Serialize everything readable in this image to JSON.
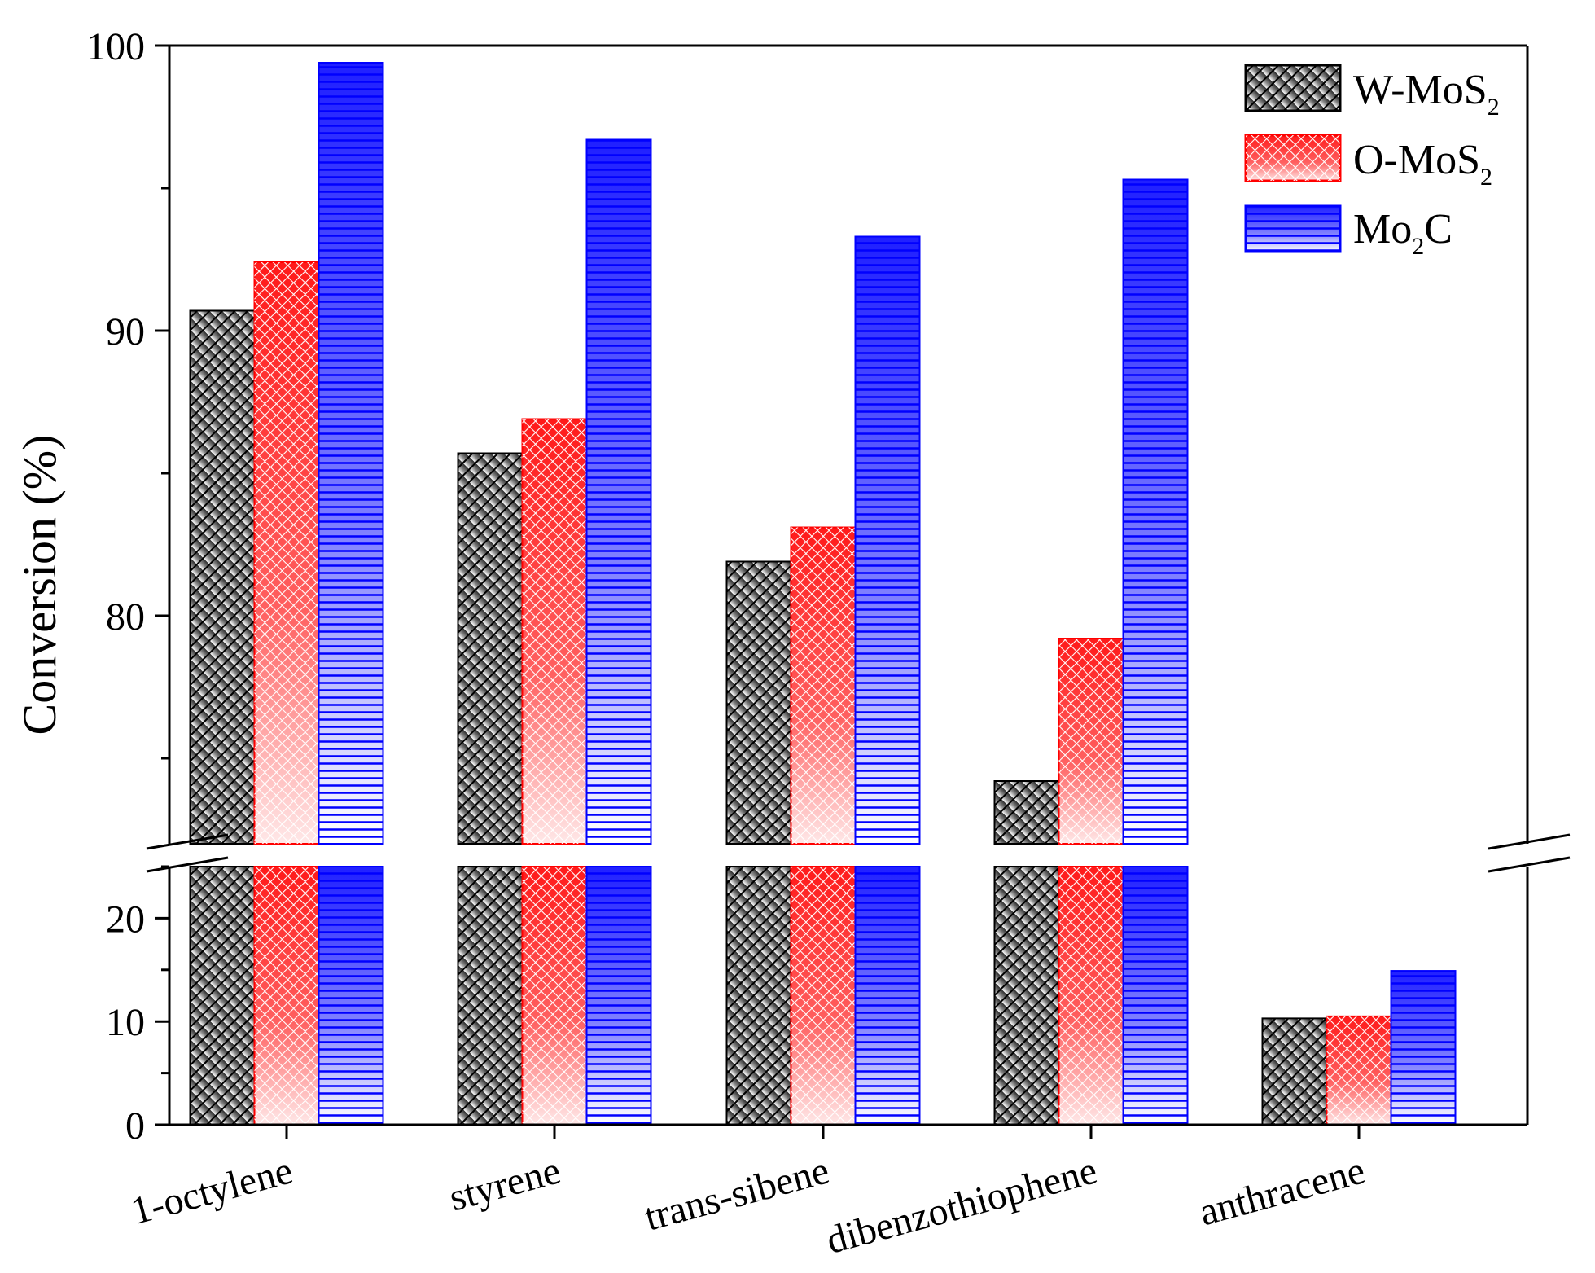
{
  "chart_data": {
    "type": "bar",
    "ylabel": "Conversion (%)",
    "xlabel": "",
    "categories": [
      "1-octylene",
      "styrene",
      "trans-sibene",
      "dibenzothiophene",
      "anthracene"
    ],
    "series": [
      {
        "name": "W-MoS2",
        "label_main": "W-MoS",
        "label_sub": "2",
        "values": [
          90.7,
          85.7,
          81.9,
          74.2,
          10.3
        ],
        "color": "#000000",
        "pattern": "diagonal hatch"
      },
      {
        "name": "O-MoS2",
        "label_main": "O-MoS",
        "label_sub": "2",
        "values": [
          92.4,
          86.9,
          83.1,
          79.2,
          10.5
        ],
        "color": "#ff0000",
        "pattern": "crosshatch"
      },
      {
        "name": "Mo2C",
        "label_pre": "Mo",
        "label_sub": "2",
        "label_post": "C",
        "values": [
          99.4,
          96.7,
          93.3,
          95.3,
          14.9
        ],
        "color": "#0000ff",
        "pattern": "horizontal lines"
      }
    ],
    "y_axis": {
      "broken": true,
      "lower_segment": {
        "range": [
          0,
          25
        ],
        "ticks": [
          "0",
          "10",
          "20"
        ],
        "tick_values": [
          0,
          10,
          20
        ]
      },
      "upper_segment": {
        "range": [
          72,
          100
        ],
        "ticks": [
          "80",
          "90",
          "100"
        ],
        "tick_values": [
          80,
          90,
          100
        ]
      }
    },
    "legend_position": "top-right",
    "grid": false
  }
}
